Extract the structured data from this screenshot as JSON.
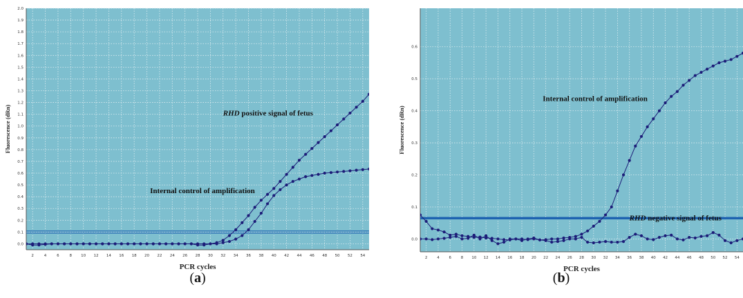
{
  "chart_data": [
    {
      "type": "line",
      "panel_label": "a",
      "xlabel": "PCR cycles",
      "ylabel": "Fluorescence (dRn)",
      "xlim": [
        1,
        55
      ],
      "ylim": [
        -0.05,
        2.0
      ],
      "x_ticks": [
        2,
        4,
        6,
        8,
        10,
        12,
        14,
        16,
        18,
        20,
        22,
        24,
        26,
        28,
        30,
        32,
        34,
        36,
        38,
        40,
        42,
        44,
        46,
        48,
        50,
        52,
        54
      ],
      "y_ticks": [
        0.0,
        0.1,
        0.2,
        0.3,
        0.4,
        0.5,
        0.6,
        0.7,
        0.8,
        0.9,
        1.0,
        1.1,
        1.2,
        1.3,
        1.4,
        1.5,
        1.6,
        1.7,
        1.8,
        1.9,
        2.0
      ],
      "y_tick_labels": [
        "0.0",
        "0.1",
        "0.2",
        "0.3",
        "0.4",
        "0.5",
        "0.6",
        "0.7",
        "0.8",
        "0.9",
        "1.0",
        "1.1",
        "1.2",
        "1.3",
        "1.4",
        "1.5",
        "1.6",
        "1.7",
        "1.8",
        "1.9",
        "2.0"
      ],
      "threshold": 0.1,
      "grid": true,
      "annotations": [
        {
          "italic": "RHD",
          "text": " positive signal of fetus",
          "x": 32,
          "y": 1.09
        },
        {
          "italic": "",
          "text": "Internal control of amplification",
          "x": 20.5,
          "y": 0.43
        }
      ],
      "series": [
        {
          "x": [
            1,
            2,
            3,
            4,
            5,
            6,
            7,
            8,
            9,
            10,
            11,
            12,
            13,
            14,
            15,
            16,
            17,
            18,
            19,
            20,
            21,
            22,
            23,
            24,
            25,
            26,
            27,
            28,
            29,
            30,
            31,
            32,
            33,
            34,
            35,
            36,
            37,
            38,
            39,
            40,
            41,
            42,
            43,
            44,
            45,
            46,
            47,
            48,
            49,
            50,
            51,
            52,
            53,
            54,
            55
          ],
          "y": [
            0,
            -0.01,
            -0.01,
            -0.005,
            0,
            0,
            0,
            0,
            0,
            0,
            0,
            0,
            0,
            0,
            0,
            0,
            0,
            0,
            0,
            0,
            0,
            0,
            0,
            0,
            0,
            0,
            0,
            -0.01,
            -0.01,
            0,
            0.01,
            0.03,
            0.07,
            0.12,
            0.18,
            0.24,
            0.31,
            0.37,
            0.42,
            0.47,
            0.53,
            0.59,
            0.65,
            0.71,
            0.76,
            0.81,
            0.86,
            0.91,
            0.96,
            1.01,
            1.06,
            1.11,
            1.16,
            1.21,
            1.27
          ]
        },
        {
          "x": [
            1,
            2,
            3,
            4,
            5,
            6,
            7,
            8,
            9,
            10,
            11,
            12,
            13,
            14,
            15,
            16,
            17,
            18,
            19,
            20,
            21,
            22,
            23,
            24,
            25,
            26,
            27,
            28,
            29,
            30,
            31,
            32,
            33,
            34,
            35,
            36,
            37,
            38,
            39,
            40,
            41,
            42,
            43,
            44,
            45,
            46,
            47,
            48,
            49,
            50,
            51,
            52,
            53,
            54,
            55
          ],
          "y": [
            0,
            0,
            0,
            0,
            0,
            0,
            0,
            0,
            0,
            0,
            0,
            0,
            0,
            0,
            0,
            0,
            0,
            0,
            0,
            0,
            0,
            0,
            0,
            0,
            0,
            0,
            0,
            0,
            0,
            0,
            0,
            0.01,
            0.02,
            0.04,
            0.07,
            0.12,
            0.19,
            0.26,
            0.34,
            0.41,
            0.46,
            0.5,
            0.53,
            0.55,
            0.57,
            0.58,
            0.59,
            0.6,
            0.605,
            0.61,
            0.615,
            0.62,
            0.625,
            0.63,
            0.635
          ]
        }
      ]
    },
    {
      "type": "line",
      "panel_label": "b",
      "xlabel": "PCR cycles",
      "ylabel": "Fluorescence (dRn)",
      "xlim": [
        1,
        55
      ],
      "ylim": [
        -0.04,
        0.72
      ],
      "x_ticks": [
        2,
        4,
        6,
        8,
        10,
        12,
        14,
        16,
        18,
        20,
        22,
        24,
        26,
        28,
        30,
        32,
        34,
        36,
        38,
        40,
        42,
        44,
        46,
        48,
        50,
        52,
        54
      ],
      "y_ticks": [
        0.0,
        0.1,
        0.2,
        0.3,
        0.4,
        0.5,
        0.6
      ],
      "y_tick_labels": [
        "0.0",
        "0.1",
        "0.2",
        "0.3",
        "0.4",
        "0.5",
        "0.6"
      ],
      "threshold": 0.065,
      "grid": true,
      "annotations": [
        {
          "italic": "",
          "text": "Internal control of amplification",
          "x": 21.5,
          "y": 0.43
        },
        {
          "italic": "RHD",
          "text": " negative signal of fetus",
          "x": 36,
          "y": 0.058
        }
      ],
      "series": [
        {
          "x": [
            1,
            2,
            3,
            4,
            5,
            6,
            7,
            8,
            9,
            10,
            11,
            12,
            13,
            14,
            15,
            16,
            17,
            18,
            19,
            20,
            21,
            22,
            23,
            24,
            25,
            26,
            27,
            28,
            29,
            30,
            31,
            32,
            33,
            34,
            35,
            36,
            37,
            38,
            39,
            40,
            41,
            42,
            43,
            44,
            45,
            46,
            47,
            48,
            49,
            50,
            51,
            52,
            53,
            54,
            55
          ],
          "y": [
            0.075,
            0.055,
            0.032,
            0.028,
            0.022,
            0.012,
            0.015,
            0.01,
            0.008,
            0.005,
            0.006,
            0.003,
            0.002,
            0.0,
            -0.002,
            -0.003,
            0.0,
            0.0,
            -0.002,
            0.0,
            -0.003,
            -0.002,
            0.0,
            0.0,
            0.003,
            0.005,
            0.008,
            0.015,
            0.025,
            0.04,
            0.055,
            0.075,
            0.1,
            0.15,
            0.2,
            0.245,
            0.29,
            0.32,
            0.35,
            0.375,
            0.4,
            0.425,
            0.445,
            0.46,
            0.48,
            0.495,
            0.51,
            0.52,
            0.53,
            0.54,
            0.55,
            0.555,
            0.56,
            0.57,
            0.58
          ]
        },
        {
          "x": [
            1,
            2,
            3,
            4,
            5,
            6,
            7,
            8,
            9,
            10,
            11,
            12,
            13,
            14,
            15,
            16,
            17,
            18,
            19,
            20,
            21,
            22,
            23,
            24,
            25,
            26,
            27,
            28,
            29,
            30,
            31,
            32,
            33,
            34,
            35,
            36,
            37,
            38,
            39,
            40,
            41,
            42,
            43,
            44,
            45,
            46,
            47,
            48,
            49,
            50,
            51,
            52,
            53,
            54,
            55
          ],
          "y": [
            0.0,
            0.0,
            -0.002,
            0.0,
            0.002,
            0.005,
            0.008,
            0.0,
            0.002,
            0.012,
            0.0,
            0.01,
            -0.005,
            -0.015,
            -0.01,
            0.0,
            0.0,
            -0.005,
            0.0,
            0.003,
            -0.003,
            -0.005,
            -0.01,
            -0.008,
            -0.005,
            0.0,
            0.0,
            0.005,
            -0.01,
            -0.012,
            -0.01,
            -0.008,
            -0.01,
            -0.01,
            -0.008,
            0.005,
            0.015,
            0.01,
            0.0,
            -0.002,
            0.005,
            0.01,
            0.012,
            0.0,
            -0.003,
            0.005,
            0.003,
            0.008,
            0.01,
            0.02,
            0.012,
            -0.005,
            -0.012,
            -0.005,
            0.0
          ]
        }
      ]
    }
  ],
  "captions": {
    "a": "a",
    "b": "b"
  },
  "colors": {
    "plot_bg": "#7ebfcf",
    "grid": "#dcecf0",
    "series": "#1c1c78",
    "threshold": "#1e63b0"
  }
}
